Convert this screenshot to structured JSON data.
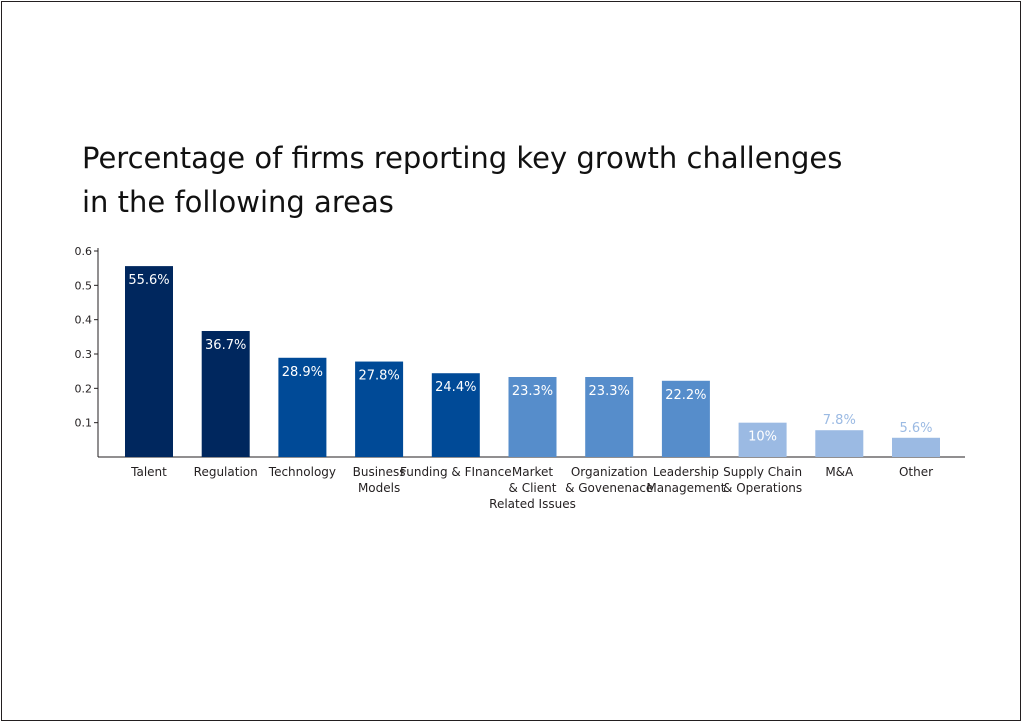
{
  "chart_data": {
    "type": "bar",
    "title": "Percentage of firms reporting key growth challenges in the following areas",
    "title_lines": [
      "Percentage of firms reporting key growth challenges",
      "in the following areas"
    ],
    "xlabel": "",
    "ylabel": "",
    "ylim": [
      0,
      0.6
    ],
    "yticks": [
      "0.1",
      "0.2",
      "0.3",
      "0.4",
      "0.5",
      "0.6"
    ],
    "grid": false,
    "legend": "none",
    "categories": [
      {
        "label_lines": [
          "Talent"
        ],
        "value": 0.556,
        "data_label": "55.6%",
        "color": "#00275e",
        "label_color": "#ffffff",
        "label_position": "inside"
      },
      {
        "label_lines": [
          "Regulation"
        ],
        "value": 0.367,
        "data_label": "36.7%",
        "color": "#00275e",
        "label_color": "#ffffff",
        "label_position": "inside"
      },
      {
        "label_lines": [
          "Technology"
        ],
        "value": 0.289,
        "data_label": "28.9%",
        "color": "#004a97",
        "label_color": "#ffffff",
        "label_position": "inside"
      },
      {
        "label_lines": [
          "Business",
          "Models"
        ],
        "value": 0.278,
        "data_label": "27.8%",
        "color": "#004a97",
        "label_color": "#ffffff",
        "label_position": "inside"
      },
      {
        "label_lines": [
          "Funding & FInance"
        ],
        "value": 0.244,
        "data_label": "24.4%",
        "color": "#004a97",
        "label_color": "#ffffff",
        "label_position": "inside"
      },
      {
        "label_lines": [
          "Market",
          "& Client",
          "Related Issues"
        ],
        "value": 0.233,
        "data_label": "23.3%",
        "color": "#568dcb",
        "label_color": "#ffffff",
        "label_position": "inside"
      },
      {
        "label_lines": [
          "Organization",
          "& Govenenace"
        ],
        "value": 0.233,
        "data_label": "23.3%",
        "color": "#568dcb",
        "label_color": "#ffffff",
        "label_position": "inside"
      },
      {
        "label_lines": [
          "Leadership",
          "Management"
        ],
        "value": 0.222,
        "data_label": "22.2%",
        "color": "#568dcb",
        "label_color": "#ffffff",
        "label_position": "inside"
      },
      {
        "label_lines": [
          "Supply Chain",
          "& Operations"
        ],
        "value": 0.1,
        "data_label": "10%",
        "color": "#9bbae3",
        "label_color": "#ffffff",
        "label_position": "inside"
      },
      {
        "label_lines": [
          "M&A"
        ],
        "value": 0.078,
        "data_label": "7.8%",
        "color": "#9bbae3",
        "label_color": "#9bbae3",
        "label_position": "above"
      },
      {
        "label_lines": [
          "Other"
        ],
        "value": 0.056,
        "data_label": "5.6%",
        "color": "#9bbae3",
        "label_color": "#9bbae3",
        "label_position": "above"
      }
    ]
  }
}
